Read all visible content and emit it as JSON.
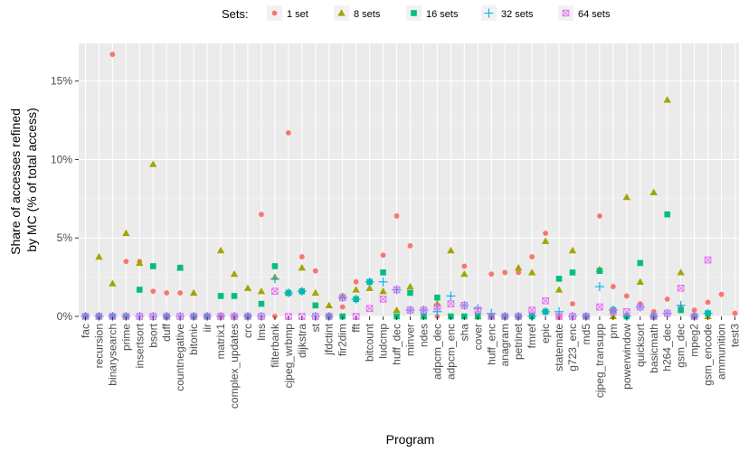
{
  "chart_data": {
    "type": "scatter",
    "xlabel": "Program",
    "ylabel": [
      "Share of accesses refined",
      "by MC (% of total access)"
    ],
    "ylim": [
      0,
      17.4
    ],
    "yticks": [
      0,
      5,
      10,
      15
    ],
    "ytick_labels": [
      "0%",
      "5%",
      "10%",
      "15%"
    ],
    "grid": true,
    "legend": {
      "position": "top",
      "title": "Sets:",
      "entries": [
        {
          "name": "1 set",
          "shape": "circle",
          "color": "#F8766D"
        },
        {
          "name": "8 sets",
          "shape": "triangle",
          "color": "#A3A500"
        },
        {
          "name": "16 sets",
          "shape": "square",
          "color": "#00BF7D"
        },
        {
          "name": "32 sets",
          "shape": "plus",
          "color": "#00B0F6"
        },
        {
          "name": "64 sets",
          "shape": "boxed-x",
          "color": "#E76BF3"
        }
      ]
    },
    "categories": [
      "fac",
      "recursion",
      "binarysearch",
      "prime",
      "insertsort",
      "bsort",
      "duff",
      "countnegative",
      "bitonic",
      "iir",
      "matrix1",
      "complex_updates",
      "crc",
      "lms",
      "filterbank",
      "cjpeg_wrbmp",
      "dijkstra",
      "st",
      "jfdctint",
      "fir2dim",
      "fft",
      "bitcount",
      "ludcmp",
      "huff_dec",
      "minver",
      "ndes",
      "adpcm_dec",
      "adpcm_enc",
      "sha",
      "cover",
      "huff_enc",
      "anagram",
      "petrinet",
      "fmref",
      "epic",
      "statemate",
      "g723_enc",
      "md5",
      "cjpeg_transupp",
      "pm",
      "powerwindow",
      "quicksort",
      "basicmath",
      "h264_dec",
      "gsm_dec",
      "mpeg2",
      "gsm_encode",
      "ammunition",
      "test3"
    ],
    "series": [
      {
        "name": "1 set",
        "values": [
          0,
          0,
          16.7,
          3.5,
          3.5,
          1.6,
          1.5,
          1.5,
          0,
          0,
          0,
          0,
          0,
          6.5,
          0,
          11.7,
          3.8,
          2.9,
          0,
          0.6,
          2.2,
          2.2,
          3.9,
          6.4,
          4.5,
          0,
          0,
          0,
          3.2,
          0,
          2.7,
          2.8,
          2.8,
          3.8,
          5.3,
          0,
          0.8,
          0,
          6.4,
          1.9,
          1.3,
          0.8,
          0.3,
          1.1,
          0.6,
          0.4,
          0.9,
          1.4,
          0.2
        ]
      },
      {
        "name": "8 sets",
        "values": [
          0,
          3.8,
          2.1,
          5.3,
          3.4,
          9.7,
          0,
          3.1,
          1.5,
          0,
          4.2,
          2.7,
          1.8,
          1.6,
          2.5,
          1.5,
          3.1,
          1.5,
          0.7,
          1.3,
          1.7,
          1.8,
          1.6,
          0.4,
          1.9,
          0,
          0.8,
          4.2,
          2.7,
          0,
          0,
          0,
          3.1,
          2.8,
          4.8,
          1.7,
          4.2,
          0,
          3.0,
          0,
          7.6,
          2.2,
          7.9,
          13.8,
          2.8,
          0,
          0,
          null,
          null
        ]
      },
      {
        "name": "16 sets",
        "values": [
          0,
          0,
          0,
          0,
          1.7,
          3.2,
          0,
          3.1,
          0,
          0,
          1.3,
          1.3,
          0,
          0.8,
          3.2,
          1.5,
          1.6,
          0.7,
          0,
          0,
          1.1,
          2.2,
          2.8,
          0,
          1.5,
          0,
          1.2,
          0,
          0,
          0,
          0,
          0,
          0,
          0,
          0.3,
          2.4,
          2.8,
          0,
          2.9,
          0.4,
          0,
          3.4,
          0,
          6.5,
          0.4,
          0,
          0.2,
          null,
          null
        ]
      },
      {
        "name": "32 sets",
        "values": [
          0,
          0,
          0,
          0,
          0,
          0,
          0,
          0,
          0,
          0,
          0,
          0,
          0,
          0,
          2.4,
          1.5,
          1.6,
          0,
          0,
          1.2,
          1.1,
          2.2,
          2.2,
          1.7,
          0.4,
          0.4,
          0.3,
          1.3,
          0.7,
          0.5,
          0.2,
          0,
          0,
          0,
          0.3,
          0.3,
          0,
          0,
          1.9,
          0.4,
          0,
          0.6,
          0,
          0.2,
          0.7,
          0,
          0.2,
          null,
          null
        ]
      },
      {
        "name": "64 sets",
        "values": [
          0,
          0,
          0,
          0,
          0,
          0,
          0,
          0,
          0,
          0,
          0,
          0,
          0,
          0,
          1.6,
          0,
          0,
          0,
          0,
          1.2,
          0,
          0.5,
          1.1,
          1.7,
          0.4,
          0.4,
          0.6,
          0.8,
          0.7,
          0.4,
          0,
          0,
          0,
          0.4,
          1.0,
          0,
          0,
          0,
          0.6,
          0.3,
          0.3,
          0.6,
          0,
          0.2,
          1.8,
          0,
          3.6,
          null,
          null
        ]
      }
    ]
  }
}
